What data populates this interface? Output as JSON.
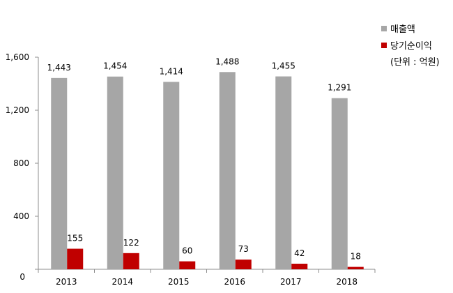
{
  "chart_data": {
    "type": "bar",
    "categories": [
      "2013",
      "2014",
      "2015",
      "2016",
      "2017",
      "2018"
    ],
    "series": [
      {
        "name": "매출액",
        "values": [
          1443,
          1454,
          1414,
          1488,
          1455,
          1291
        ],
        "labels": [
          "1,443",
          "1,454",
          "1,414",
          "1,488",
          "1,455",
          "1,291"
        ],
        "color": "#a6a6a6"
      },
      {
        "name": "당기순이익",
        "values": [
          155,
          122,
          60,
          73,
          42,
          18
        ],
        "labels": [
          "155",
          "122",
          "60",
          "73",
          "42",
          "18"
        ],
        "color": "#c00000"
      }
    ],
    "ylim": [
      0,
      1600
    ],
    "yticks": [
      0,
      400,
      800,
      1200,
      1600
    ],
    "ytick_labels": [
      "0",
      "400",
      "800",
      "1,200",
      "1,600"
    ],
    "unit_note": "(단위 : 억원)",
    "grid": false,
    "legend_position": "top-right"
  }
}
